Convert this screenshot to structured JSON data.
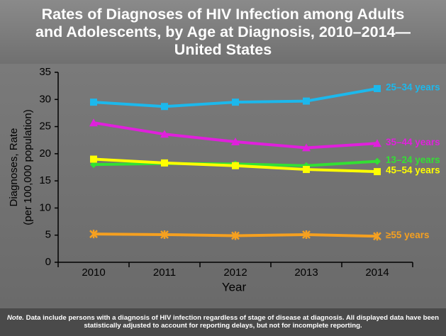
{
  "chart_data": {
    "type": "line",
    "title": "Rates of Diagnoses of HIV Infection among Adults and Adolescents, by Age at Diagnosis, 2010–2014—United States",
    "ylabel": [
      "Diagnoses, Rate",
      "(per 100,000 population)"
    ],
    "xlabel": "Year",
    "categories": [
      "2010",
      "2011",
      "2012",
      "2013",
      "2014"
    ],
    "ylim": [
      0,
      35
    ],
    "yticks": [
      0,
      5,
      10,
      15,
      20,
      25,
      30,
      35
    ],
    "series": [
      {
        "name": "25–34 years",
        "color": "#1cb8ec",
        "marker": "square",
        "values": [
          29.5,
          28.7,
          29.5,
          29.7,
          32.0
        ]
      },
      {
        "name": "35–44 years",
        "color": "#e020dc",
        "marker": "triangle",
        "values": [
          25.7,
          23.6,
          22.2,
          21.1,
          21.9
        ]
      },
      {
        "name": "13–24 years",
        "color": "#33e033",
        "marker": "diamond",
        "values": [
          18.0,
          18.2,
          18.1,
          17.8,
          18.6
        ]
      },
      {
        "name": "45–54 years",
        "color": "#ffff00",
        "marker": "square",
        "values": [
          19.0,
          18.3,
          17.8,
          17.1,
          16.7
        ]
      },
      {
        "name": "≥55 years",
        "color": "#f5a020",
        "marker": "cross",
        "values": [
          5.2,
          5.1,
          4.9,
          5.1,
          4.8
        ]
      }
    ],
    "note_lead": "Note.",
    "note": "Data include persons with a diagnosis of HIV infection regardless of stage of  disease at diagnosis. All displayed data have been statistically adjusted to account for reporting delays, but not for incomplete reporting."
  }
}
